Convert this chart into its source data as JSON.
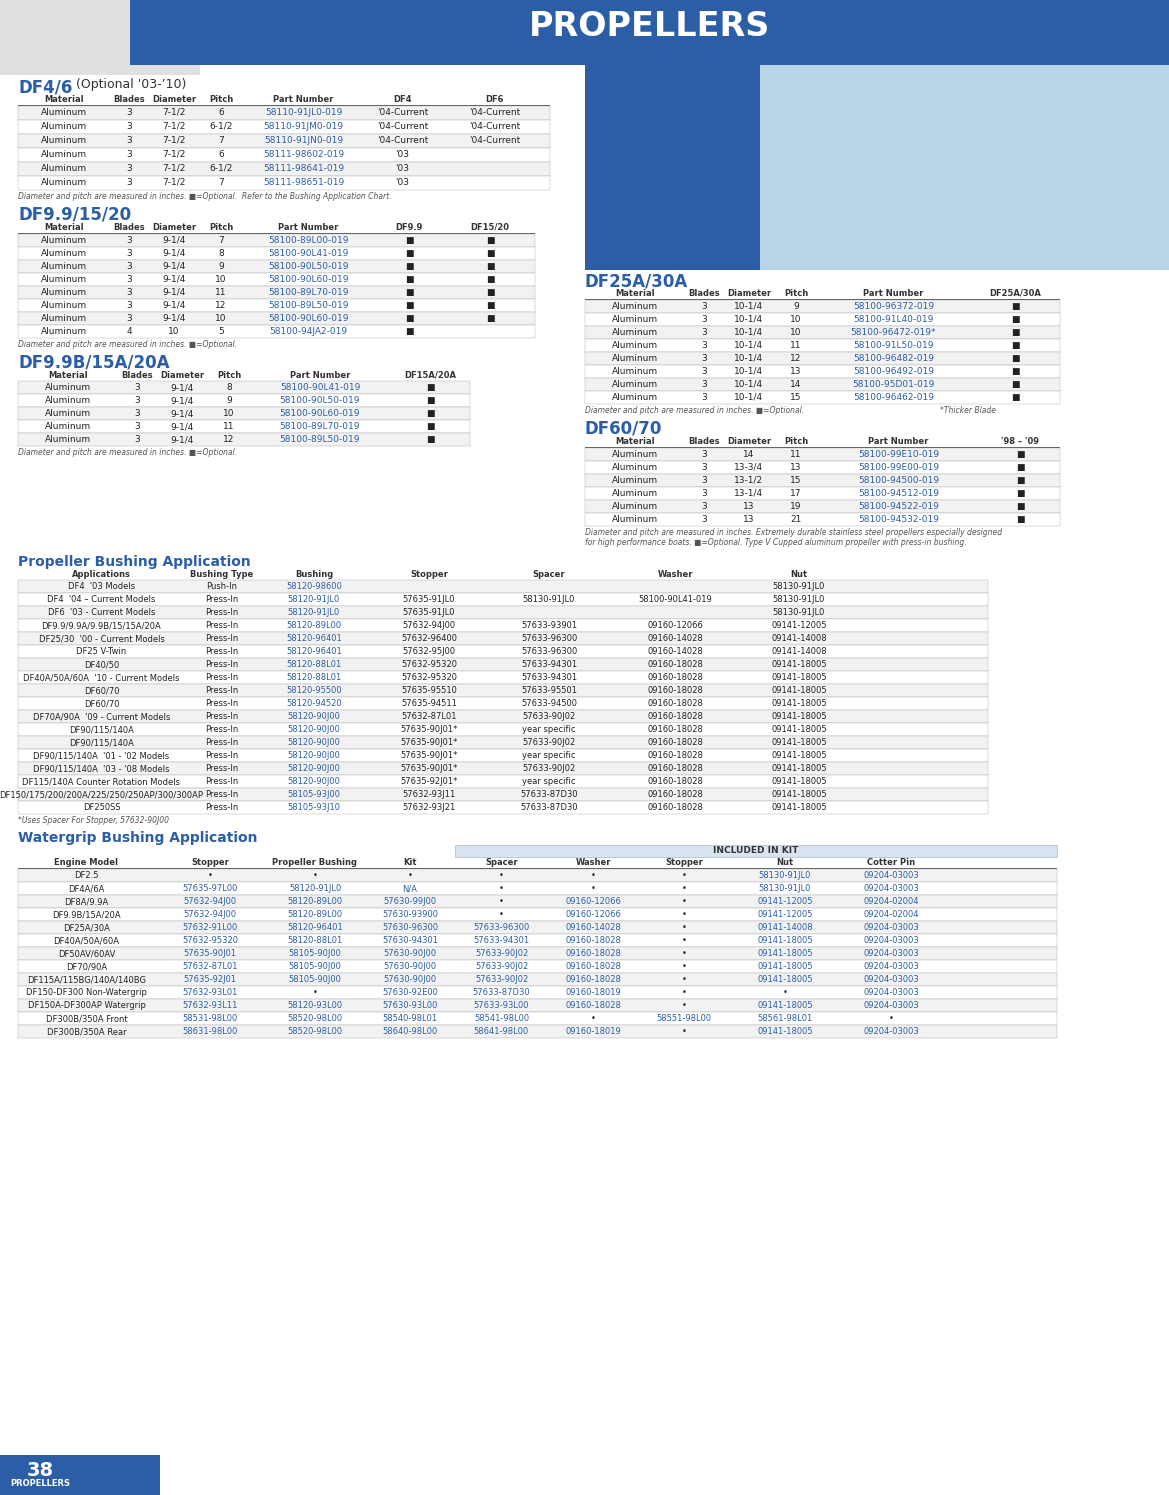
{
  "title": "PROPELLERS",
  "df46_title": "DF4/6",
  "df46_subtitle": " (Optional '03-’10)",
  "df46_headers": [
    "Material",
    "Blades",
    "Diameter",
    "Pitch",
    "Part Number",
    "DF4",
    "DF6"
  ],
  "df46_rows": [
    [
      "Aluminum",
      "3",
      "7-1/2",
      "6",
      "58110-91JL0-019",
      "'04-Current",
      "'04-Current"
    ],
    [
      "Aluminum",
      "3",
      "7-1/2",
      "6-1/2",
      "58110-91JM0-019",
      "'04-Current",
      "'04-Current"
    ],
    [
      "Aluminum",
      "3",
      "7-1/2",
      "7",
      "58110-91JN0-019",
      "'04-Current",
      "'04-Current"
    ],
    [
      "Aluminum",
      "3",
      "7-1/2",
      "6",
      "58111-98602-019",
      "'03",
      ""
    ],
    [
      "Aluminum",
      "3",
      "7-1/2",
      "6-1/2",
      "58111-98641-019",
      "'03",
      ""
    ],
    [
      "Aluminum",
      "3",
      "7-1/2",
      "7",
      "58111-98651-019",
      "'03",
      ""
    ]
  ],
  "df46_note": "Diameter and pitch are measured in inches. ■=Optional.  Refer to the Bushing Application Chart.",
  "df9920_title": "DF9.9/15/20",
  "df9920_headers": [
    "Material",
    "Blades",
    "Diameter",
    "Pitch",
    "Part Number",
    "DF9.9",
    "DF15/20"
  ],
  "df9920_rows": [
    [
      "Aluminum",
      "3",
      "9-1/4",
      "7",
      "58100-89L00-019",
      "■",
      "■"
    ],
    [
      "Aluminum",
      "3",
      "9-1/4",
      "8",
      "58100-90L41-019",
      "■",
      "■"
    ],
    [
      "Aluminum",
      "3",
      "9-1/4",
      "9",
      "58100-90L50-019",
      "■",
      "■"
    ],
    [
      "Aluminum",
      "3",
      "9-1/4",
      "10",
      "58100-90L60-019",
      "■",
      "■"
    ],
    [
      "Aluminum",
      "3",
      "9-1/4",
      "11",
      "58100-89L70-019",
      "■",
      "■"
    ],
    [
      "Aluminum",
      "3",
      "9-1/4",
      "12",
      "58100-89L50-019",
      "■",
      "■"
    ],
    [
      "Aluminum",
      "3",
      "9-1/4",
      "10",
      "58100-90L60-019",
      "■",
      "■"
    ],
    [
      "Aluminum",
      "4",
      "10",
      "5",
      "58100-94JA2-019",
      "■",
      ""
    ]
  ],
  "df9920_note": "Diameter and pitch are measured in inches. ■=Optional.",
  "df99b_title": "DF9.9B/15A/20A",
  "df99b_headers": [
    "Material",
    "Blades",
    "Diameter",
    "Pitch",
    "Part Number",
    "DF15A/20A"
  ],
  "df99b_rows": [
    [
      "Aluminum",
      "3",
      "9-1/4",
      "8",
      "58100-90L41-019",
      "■"
    ],
    [
      "Aluminum",
      "3",
      "9-1/4",
      "9",
      "58100-90L50-019",
      "■"
    ],
    [
      "Aluminum",
      "3",
      "9-1/4",
      "10",
      "58100-90L60-019",
      "■"
    ],
    [
      "Aluminum",
      "3",
      "9-1/4",
      "11",
      "58100-89L70-019",
      "■"
    ],
    [
      "Aluminum",
      "3",
      "9-1/4",
      "12",
      "58100-89L50-019",
      "■"
    ]
  ],
  "df99b_note": "Diameter and pitch are measured in inches. ■=Optional.",
  "df25a_title": "DF25A/30A",
  "df25a_headers": [
    "Material",
    "Blades",
    "Diameter",
    "Pitch",
    "Part Number",
    "DF25A/30A"
  ],
  "df25a_rows": [
    [
      "Aluminum",
      "3",
      "10-1/4",
      "9",
      "58100-96372-019",
      "■"
    ],
    [
      "Aluminum",
      "3",
      "10-1/4",
      "10",
      "58100-91L40-019",
      "■"
    ],
    [
      "Aluminum",
      "3",
      "10-1/4",
      "10",
      "58100-96472-019*",
      "■"
    ],
    [
      "Aluminum",
      "3",
      "10-1/4",
      "11",
      "58100-91L50-019",
      "■"
    ],
    [
      "Aluminum",
      "3",
      "10-1/4",
      "12",
      "58100-96482-019",
      "■"
    ],
    [
      "Aluminum",
      "3",
      "10-1/4",
      "13",
      "58100-96492-019",
      "■"
    ],
    [
      "Aluminum",
      "3",
      "10-1/4",
      "14",
      "58100-95D01-019",
      "■"
    ],
    [
      "Aluminum",
      "3",
      "10-1/4",
      "15",
      "58100-96462-019",
      "■"
    ]
  ],
  "df25a_note": "Diameter and pitch are measured in inches. ■=Optional.",
  "df25a_note2": "*Thicker Blade",
  "df6070_title": "DF60/70",
  "df6070_headers": [
    "Material",
    "Blades",
    "Diameter",
    "Pitch",
    "Part Number",
    "'98 – '09"
  ],
  "df6070_rows": [
    [
      "Aluminum",
      "3",
      "14",
      "11",
      "58100-99E10-019",
      "■"
    ],
    [
      "Aluminum",
      "3",
      "13-3/4",
      "13",
      "58100-99E00-019",
      "■"
    ],
    [
      "Aluminum",
      "3",
      "13-1/2",
      "15",
      "58100-94500-019",
      "■"
    ],
    [
      "Aluminum",
      "3",
      "13-1/4",
      "17",
      "58100-94512-019",
      "■"
    ],
    [
      "Aluminum",
      "3",
      "13",
      "19",
      "58100-94522-019",
      "■"
    ],
    [
      "Aluminum",
      "3",
      "13",
      "21",
      "58100-94532-019",
      "■"
    ]
  ],
  "df6070_note": "Diameter and pitch are measured in inches. Extremely durable stainless steel propellers especially designed\nfor high performance boats. ■=Optional. Type V Cupped aluminum propeller with press-in bushing.",
  "bushing_title": "Propeller Bushing Application",
  "bushing_headers": [
    "Applications",
    "Bushing Type",
    "Bushing",
    "Stopper",
    "Spacer",
    "Washer",
    "Nut"
  ],
  "bushing_rows": [
    [
      "DF4  '03 Models",
      "Push-In",
      "58120-98600",
      "",
      "",
      "",
      "58130-91JL0"
    ],
    [
      "DF4  '04 – Current Models",
      "Press-In",
      "58120-91JL0",
      "57635-91JL0",
      "58130-91JL0",
      "58100-90L41-019",
      "58130-91JL0"
    ],
    [
      "DF6  '03 - Current Models",
      "Press-In",
      "58120-91JL0",
      "57635-91JL0",
      "",
      "",
      "58130-91JL0"
    ],
    [
      "DF9.9/9.9A/9.9B/15/15A/20A",
      "Press-In",
      "58120-89L00",
      "57632-94J00",
      "57633-93901",
      "09160-12066",
      "09141-12005"
    ],
    [
      "DF25/30  '00 - Current Models",
      "Press-In",
      "58120-96401",
      "57632-96400",
      "57633-96300",
      "09160-14028",
      "09141-14008"
    ],
    [
      "DF25 V-Twin",
      "Press-In",
      "58120-96401",
      "57632-95J00",
      "57633-96300",
      "09160-14028",
      "09141-14008"
    ],
    [
      "DF40/50",
      "Press-In",
      "58120-88L01",
      "57632-95320",
      "57633-94301",
      "09160-18028",
      "09141-18005"
    ],
    [
      "DF40A/50A/60A  '10 - Current Models",
      "Press-In",
      "58120-88L01",
      "57632-95320",
      "57633-94301",
      "09160-18028",
      "09141-18005"
    ],
    [
      "DF60/70",
      "Press-In",
      "58120-95500",
      "57635-95510",
      "57633-95501",
      "09160-18028",
      "09141-18005"
    ],
    [
      "DF60/70",
      "Press-In",
      "58120-94520",
      "57635-94511",
      "57633-94500",
      "09160-18028",
      "09141-18005"
    ],
    [
      "DF70A/90A  '09 - Current Models",
      "Press-In",
      "58120-90J00",
      "57632-87L01",
      "57633-90J02",
      "09160-18028",
      "09141-18005"
    ],
    [
      "DF90/115/140A",
      "Press-In",
      "58120-90J00",
      "57635-90J01*",
      "year specific",
      "09160-18028",
      "09141-18005"
    ],
    [
      "DF90/115/140A",
      "Press-In",
      "58120-90J00",
      "57635-90J01*",
      "57633-90J02",
      "09160-18028",
      "09141-18005"
    ],
    [
      "DF90/115/140A  '01 - '02 Models",
      "Press-In",
      "58120-90J00",
      "57635-90J01*",
      "year specific",
      "09160-18028",
      "09141-18005"
    ],
    [
      "DF90/115/140A  '03 - '08 Models",
      "Press-In",
      "58120-90J00",
      "57635-90J01*",
      "57633-90J02",
      "09160-18028",
      "09141-18005"
    ],
    [
      "DF115/140A Counter Rotation Models",
      "Press-In",
      "58120-90J00",
      "57635-92J01*",
      "year specific",
      "09160-18028",
      "09141-18005"
    ],
    [
      "DF150/175/200/200A/225/250/250AP/300/300AP",
      "Press-In",
      "58105-93J00",
      "57632-93J11",
      "57633-87D30",
      "09160-18028",
      "09141-18005"
    ],
    [
      "DF250SS",
      "Press-In",
      "58105-93J10",
      "57632-93J21",
      "57633-87D30",
      "09160-18028",
      "09141-18005"
    ]
  ],
  "bushing_footnote": "*Uses Spacer For Stopper, 57632-90J00",
  "watergrip_title": "Watergrip Bushing Application",
  "watergrip_col_headers": [
    "Engine Model",
    "Stopper",
    "Propeller Bushing",
    "Kit",
    "Spacer",
    "Washer",
    "Stopper",
    "Nut",
    "Cotter Pin"
  ],
  "watergrip_subheader": "INCLUDED IN KIT",
  "watergrip_rows": [
    [
      "DF2.5",
      "•",
      "•",
      "•",
      "•",
      "•",
      "•",
      "58130-91JL0",
      "09204-03003"
    ],
    [
      "DF4A/6A",
      "57635-97L00",
      "58120-91JL0",
      "N/A",
      "•",
      "•",
      "•",
      "58130-91JL0",
      "09204-03003"
    ],
    [
      "DF8A/9.9A",
      "57632-94J00",
      "58120-89L00",
      "57630-99J00",
      "•",
      "09160-12066",
      "•",
      "09141-12005",
      "09204-02004"
    ],
    [
      "DF9.9B/15A/20A",
      "57632-94J00",
      "58120-89L00",
      "57630-93900",
      "•",
      "09160-12066",
      "•",
      "09141-12005",
      "09204-02004"
    ],
    [
      "DF25A/30A",
      "57632-91L00",
      "58120-96401",
      "57630-96300",
      "57633-96300",
      "09160-14028",
      "•",
      "09141-14008",
      "09204-03003"
    ],
    [
      "DF40A/50A/60A",
      "57632-95320",
      "58120-88L01",
      "57630-94301",
      "57633-94301",
      "09160-18028",
      "•",
      "09141-18005",
      "09204-03003"
    ],
    [
      "DF50AV/60AV",
      "57635-90J01",
      "58105-90J00",
      "57630-90J00",
      "57633-90J02",
      "09160-18028",
      "•",
      "09141-18005",
      "09204-03003"
    ],
    [
      "DF70/90A",
      "57632-87L01",
      "58105-90J00",
      "57630-90J00",
      "57633-90J02",
      "09160-18028",
      "•",
      "09141-18005",
      "09204-03003"
    ],
    [
      "DF115A/115BG/140A/140BG",
      "57635-92J01",
      "58105-90J00",
      "57630-90J00",
      "57633-90J02",
      "09160-18028",
      "•",
      "09141-18005",
      "09204-03003"
    ],
    [
      "DF150-DF300 Non-Watergrip",
      "57632-93L01",
      "•",
      "57630-92E00",
      "57633-87D30",
      "09160-18019",
      "•",
      "•",
      "09204-03003"
    ],
    [
      "DF150A-DF300AP Watergrip",
      "57632-93L11",
      "58120-93L00",
      "57630-93L00",
      "57633-93L00",
      "09160-18028",
      "•",
      "09141-18005",
      "09204-03003"
    ],
    [
      "DF300B/350A Front",
      "58531-98L00",
      "58520-98L00",
      "58540-98L01",
      "58541-98L00",
      "•",
      "58551-98L00",
      "58561-98L01",
      "•"
    ],
    [
      "DF300B/350A Rear",
      "58631-98L00",
      "58520-98L00",
      "58640-98L00",
      "58641-98L00",
      "09160-18019",
      "•",
      "09141-18005",
      "09204-03003"
    ]
  ],
  "blue_color": "#2B5EA7",
  "part_num_color": "#2B5EA7",
  "header_bold_color": "#333333",
  "row_text_color": "#222222",
  "alt_row1": "#F2F2F2",
  "alt_row2": "#FFFFFF",
  "border_color": "#AAAAAA",
  "note_color": "#555555",
  "footer_num": "38",
  "footer_label": "PROPELLERS"
}
